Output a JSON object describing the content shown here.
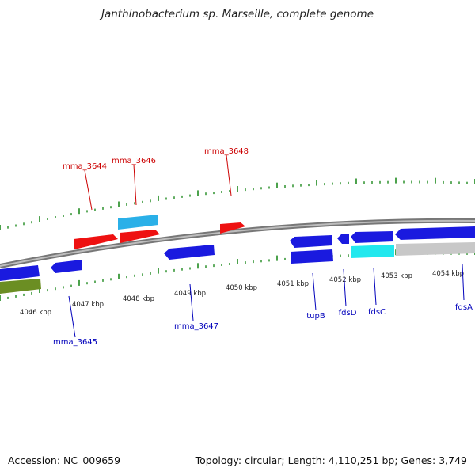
{
  "title": "Janthinobacterium sp. Marseille, complete genome",
  "footer": {
    "accession": "Accession: NC_009659",
    "summary": "Topology: circular; Length: 4,110,251 bp; Genes: 3,749"
  },
  "colors": {
    "backbone": "#8c8c8c",
    "tick": "#1f8a1f",
    "forward_gene": "#ee1111",
    "reverse_gene": "#1a1adf",
    "forward_rna": "#2ab0e8",
    "reverse_rna": "#22e8ee",
    "pseudo_band": "#c8c8c8",
    "misc_band": "#6b8e23",
    "forward_label": "#cc0000",
    "reverse_label": "#0000bb",
    "kbp_label": "#222222"
  },
  "kbp_labels": [
    "4046 kbp",
    "4047 kbp",
    "4048 kbp",
    "4049 kbp",
    "4050 kbp",
    "4051 kbp",
    "4052 kbp",
    "4053 kbp",
    "4054 kbp"
  ],
  "forward_gene_labels": [
    "mma_3644",
    "mma_3646",
    "mma_3648"
  ],
  "reverse_gene_labels": [
    "mma_3645",
    "mma_3647",
    "tupB",
    "fdsD",
    "fdsC",
    "fdsA"
  ]
}
